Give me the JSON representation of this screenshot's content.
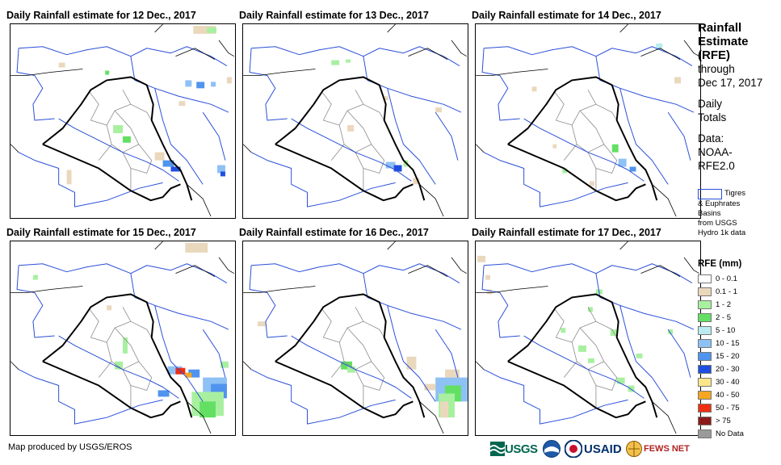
{
  "panels": [
    {
      "title": "Daily Rainfall estimate for 12 Dec., 2017"
    },
    {
      "title": "Daily Rainfall estimate for 13 Dec., 2017"
    },
    {
      "title": "Daily Rainfall estimate for 14 Dec., 2017"
    },
    {
      "title": "Daily Rainfall estimate for 15 Dec., 2017"
    },
    {
      "title": "Daily Rainfall estimate for 16 Dec., 2017"
    },
    {
      "title": "Daily Rainfall estimate for 17 Dec., 2017"
    }
  ],
  "sidebar": {
    "title_lines": [
      "Rainfall",
      "Estimate",
      "(RFE)"
    ],
    "through_lines": [
      "through",
      "Dec 17, 2017"
    ],
    "daily_lines": [
      "Daily",
      "Totals"
    ],
    "data_lines": [
      "Data:",
      "NOAA-",
      "RFE2.0"
    ],
    "basin_text_1": "Tigres",
    "basin_text_2": "& Euphrates",
    "basin_text_3": "Basins",
    "basin_text_4": "from USGS",
    "basin_text_5": "Hydro 1k data",
    "basin_color": "#2a4fd8"
  },
  "legend": {
    "title": "RFE (mm)",
    "items": [
      {
        "label": "0 - 0.1",
        "color": "#ffffff"
      },
      {
        "label": "0.1 - 1",
        "color": "#ead8bd"
      },
      {
        "label": "1 - 2",
        "color": "#a8f0a0"
      },
      {
        "label": "2 - 5",
        "color": "#63e063"
      },
      {
        "label": "5 - 10",
        "color": "#b8ecf0"
      },
      {
        "label": "10 - 15",
        "color": "#8ec1f4"
      },
      {
        "label": "15 - 20",
        "color": "#4f94ee"
      },
      {
        "label": "20 - 30",
        "color": "#1f4fe0"
      },
      {
        "label": "30 - 40",
        "color": "#fbe78a"
      },
      {
        "label": "40 - 50",
        "color": "#f5a623"
      },
      {
        "label": "50 - 75",
        "color": "#ef2f10"
      },
      {
        "label": "> 75",
        "color": "#8c1a1a"
      },
      {
        "label": "No Data",
        "color": "#9a9a9a"
      }
    ]
  },
  "footer": {
    "credit": "Map produced by USGS/EROS",
    "logos": {
      "usgs": "USGS",
      "usaid": "USAID",
      "fews": "FEWS NET"
    }
  }
}
